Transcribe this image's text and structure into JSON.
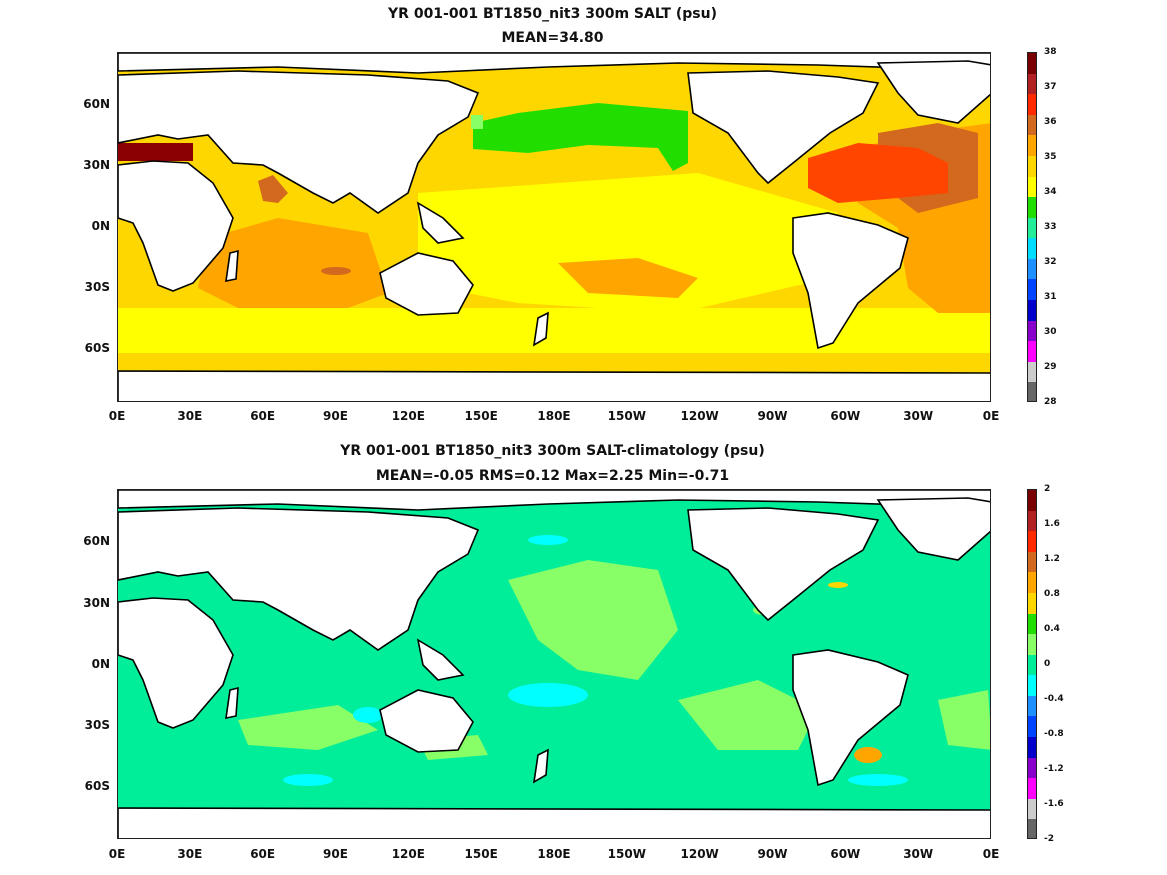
{
  "panels": [
    {
      "title_line1": "YR 001-001 BT1850_nit3 300m SALT (psu)",
      "title_line2": "MEAN=34.80",
      "colorbar": {
        "labels": [
          "38",
          "37",
          "36",
          "35",
          "34",
          "33",
          "32",
          "31",
          "30",
          "29",
          "28"
        ],
        "colors": [
          "#7a0000",
          "#b22222",
          "#ff2a00",
          "#d2691e",
          "#ffa500",
          "#ffd700",
          "#ffff00",
          "#22dd00",
          "#22ee99",
          "#00ddff",
          "#1e90ff",
          "#0044ff",
          "#0000cc",
          "#8800cc",
          "#ff00ff",
          "#cccccc",
          "#666666"
        ]
      }
    },
    {
      "title_line1": "YR 001-001 BT1850_nit3 300m SALT-climatology (psu)",
      "title_line2": "MEAN=-0.05   RMS=0.12   Max=2.25   Min=-0.71",
      "colorbar": {
        "labels": [
          "2",
          "1.6",
          "1.2",
          "0.8",
          "0.4",
          "0",
          "-0.4",
          "-0.8",
          "-1.2",
          "-1.6",
          "-2"
        ],
        "colors": [
          "#7a0000",
          "#b22222",
          "#ff2a00",
          "#d2691e",
          "#ffa500",
          "#ffd700",
          "#22dd00",
          "#88ff66",
          "#00ee99",
          "#00ffff",
          "#1e90ff",
          "#0044ff",
          "#0000cc",
          "#8800cc",
          "#ff00ff",
          "#cccccc",
          "#666666"
        ]
      }
    }
  ],
  "axes": {
    "y_ticks": [
      "60N",
      "30N",
      "0N",
      "30S",
      "60S"
    ],
    "x_ticks": [
      "0E",
      "30E",
      "60E",
      "90E",
      "120E",
      "150E",
      "180E",
      "150W",
      "120W",
      "90W",
      "60W",
      "30W",
      "0E"
    ]
  },
  "field_colors": {
    "land": "#ffffff",
    "coast": "#000000",
    "p1_base": "#ffd700",
    "p1_yellow": "#ffff00",
    "p1_orange": "#ffa500",
    "p1_darkorange": "#d2691e",
    "p1_red": "#ff4500",
    "p1_maroon": "#8b0000",
    "p1_green": "#22dd00",
    "p1_lightgreen": "#88ff66",
    "p2_base": "#00ee99",
    "p2_lightgreen": "#88ff66",
    "p2_cyan": "#00ffff",
    "p2_blue": "#1e90ff",
    "p2_orange": "#ffa500",
    "p2_yellow": "#ffd700"
  },
  "chart_data": [
    {
      "type": "heatmap",
      "title": "YR 001-001 BT1850_nit3 300m SALT (psu)",
      "subtitle": "MEAN=34.80",
      "x_ticks": [
        "0E",
        "30E",
        "60E",
        "90E",
        "120E",
        "150E",
        "180E",
        "150W",
        "120W",
        "90W",
        "60W",
        "30W",
        "0E"
      ],
      "y_ticks": [
        "60N",
        "30N",
        "0N",
        "30S",
        "60S"
      ],
      "colorbar_range": [
        28,
        38
      ],
      "colorbar_ticks": [
        38,
        37,
        36,
        35,
        34,
        33,
        32,
        31,
        30,
        29,
        28
      ],
      "mean": 34.8
    },
    {
      "type": "heatmap",
      "title": "YR 001-001 BT1850_nit3 300m SALT-climatology (psu)",
      "subtitle": "MEAN=-0.05   RMS=0.12   Max=2.25   Min=-0.71",
      "x_ticks": [
        "0E",
        "30E",
        "60E",
        "90E",
        "120E",
        "150E",
        "180E",
        "150W",
        "120W",
        "90W",
        "60W",
        "30W",
        "0E"
      ],
      "y_ticks": [
        "60N",
        "30N",
        "0N",
        "30S",
        "60S"
      ],
      "colorbar_range": [
        -2,
        2
      ],
      "colorbar_ticks": [
        2,
        1.6,
        1.2,
        0.8,
        0.4,
        0,
        -0.4,
        -0.8,
        -1.2,
        -1.6,
        -2
      ],
      "mean": -0.05,
      "rms": 0.12,
      "max": 2.25,
      "min": -0.71
    }
  ]
}
